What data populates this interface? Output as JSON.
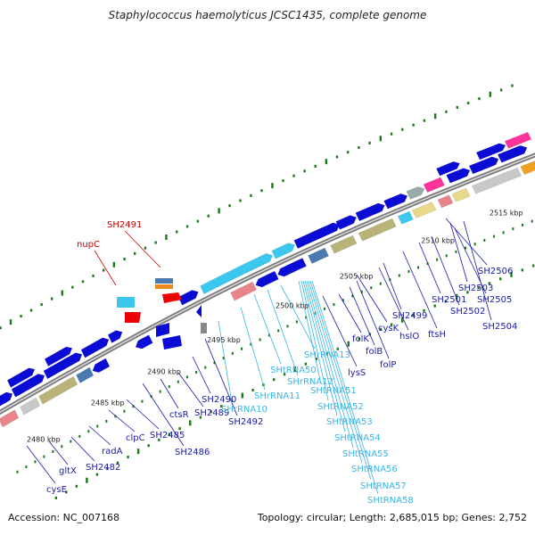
{
  "title": "Staphylococcus haemolyticus JCSC1435, complete genome",
  "footer": {
    "accession": "Accession: NC_007168",
    "topology": "Topology: circular; Length: 2,685,015 bp; Genes: 2,752"
  },
  "colors": {
    "cds": "#0b0bd6",
    "trna": "#3cc8ee",
    "red_label": "#cc0000",
    "blue_label": "#1a1aa8",
    "cyan_label": "#3ab6e6",
    "backbone": "#8a8a8a",
    "tick": "#1a7a1a"
  },
  "kbp_labels": [
    "2480 kbp",
    "2485 kbp",
    "2490 kbp",
    "2495 kbp",
    "2500 kbp",
    "2505 kbp",
    "2510 kbp",
    "2515 kbp"
  ],
  "red_labels": [
    "SH2491",
    "nupC"
  ],
  "gene_labels": [
    "cysE",
    "gltX",
    "SH2482",
    "radA",
    "clpC",
    "SH2485",
    "SH2486",
    "ctsR",
    "SH2489",
    "SH2490",
    "SH2492",
    "lysS",
    "folK",
    "folB",
    "folP",
    "cysK",
    "hslO",
    "SH2499",
    "ftsH",
    "SH2501",
    "SH2502",
    "SH2503",
    "SH2504",
    "SH2505",
    "SH2506"
  ],
  "rna_labels": [
    "SHrRNA10",
    "SHrRNA11",
    "SHtRNA50",
    "SHrRNA12",
    "SHrRNA13",
    "SHtRNA51",
    "SHtRNA52",
    "SHtRNA53",
    "SHtRNA54",
    "SHtRNA55",
    "SHtRNA56",
    "SHtRNA57",
    "SHtRNA58"
  ]
}
